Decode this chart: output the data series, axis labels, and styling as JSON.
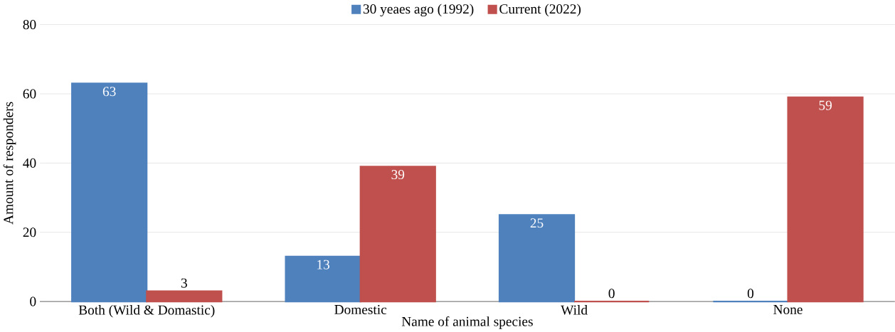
{
  "chart_data": {
    "type": "bar",
    "xlabel": "Name of animal species",
    "ylabel": "Amount of responders",
    "categories": [
      "Both (Wild & Domastic)",
      "Domestic",
      "Wild",
      "None"
    ],
    "series": [
      {
        "name": "30 yeaes ago (1992)",
        "color": "#4f81bd",
        "values": [
          63,
          13,
          25,
          0
        ]
      },
      {
        "name": "Current (2022)",
        "color": "#c0504d",
        "values": [
          3,
          39,
          0,
          59
        ]
      }
    ],
    "ylim": [
      0,
      80
    ],
    "yticks": [
      0,
      20,
      40,
      60,
      80
    ],
    "grid": "y",
    "legend": "top",
    "data_labels": true
  }
}
